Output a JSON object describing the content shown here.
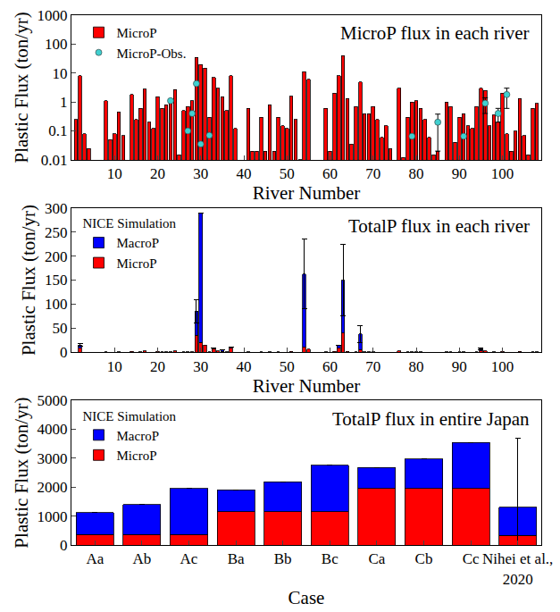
{
  "chart_data": [
    {
      "type": "bar",
      "title": "MicroP flux in each river",
      "x_label": "River Number",
      "y_label": "Plastic Flux (ton/yr)",
      "x": [
        1,
        2,
        3,
        4,
        5,
        6,
        7,
        8,
        9,
        10,
        11,
        12,
        13,
        14,
        15,
        16,
        17,
        18,
        19,
        20,
        21,
        22,
        23,
        24,
        25,
        26,
        27,
        28,
        29,
        30,
        31,
        32,
        33,
        34,
        35,
        36,
        37,
        38,
        39,
        40,
        41,
        42,
        43,
        44,
        45,
        46,
        47,
        48,
        49,
        50,
        51,
        52,
        53,
        54,
        55,
        56,
        57,
        58,
        59,
        60,
        61,
        62,
        63,
        64,
        65,
        66,
        67,
        68,
        69,
        70,
        71,
        72,
        73,
        74,
        75,
        76,
        77,
        78,
        79,
        80,
        81,
        82,
        83,
        84,
        85,
        86,
        87,
        88,
        89,
        90,
        91,
        92,
        93,
        94,
        95,
        96,
        97,
        98,
        99,
        100,
        101,
        102,
        103,
        104,
        105,
        106,
        107,
        108
      ],
      "series": [
        {
          "name": "MicroP",
          "color": "#ff0000",
          "values": [
            0.25,
            8,
            0.08,
            0.025,
            null,
            null,
            null,
            1.1,
            0.05,
            0.08,
            0.45,
            0.07,
            null,
            1.8,
            0.25,
            0.6,
            2.8,
            0.2,
            0.12,
            1.5,
            0.6,
            0.8,
            1.0,
            2.7,
            0.015,
            0.5,
            0.7,
            1.1,
            35,
            20,
            15,
            0.3,
            7,
            3,
            1.5,
            0.5,
            8,
            0.12,
            null,
            null,
            0.6,
            0.02,
            0.02,
            0.3,
            0.02,
            0.8,
            0.02,
            0.3,
            0.15,
            0.12,
            1.6,
            0.25,
            0.01,
            11,
            6,
            null,
            null,
            null,
            0.6,
            0.02,
            2,
            8,
            40,
            1.3,
            0.035,
            0.7,
            5,
            0.4,
            0.4,
            0.7,
            0.25,
            0.06,
            0.15,
            0.025,
            null,
            3,
            0.012,
            0.3,
            1,
            1.1,
            0.6,
            0.25,
            0.06,
            0.015,
            0.02,
            null,
            1,
            0.7,
            0.04,
            0.3,
            0.4,
            0.15,
            0.12,
            0.7,
            3,
            2.5,
            0.15,
            0.35,
            0.2,
            2,
            0.08,
            0.02,
            0.1,
            1.3,
            0.07,
            0.015,
            0.6,
            0.9
          ]
        },
        {
          "name": "MicroP-Obs.",
          "type": "scatter",
          "marker": "circle",
          "color": "#40d0d0",
          "x": [
            23,
            27,
            28,
            29,
            30,
            32,
            79,
            85,
            91,
            96,
            99,
            101
          ],
          "values": [
            1.1,
            0.1,
            0.4,
            4.3,
            0.035,
            0.07,
            0.065,
            0.2,
            0.065,
            0.9,
            0.4,
            1.8
          ],
          "error": [
            null,
            null,
            null,
            null,
            null,
            null,
            null,
            0.18,
            null,
            0.5,
            0.2,
            1.2
          ]
        }
      ],
      "xlim": [
        0,
        109
      ],
      "xticks": [
        10,
        20,
        30,
        40,
        50,
        60,
        70,
        80,
        90,
        100
      ],
      "ylim": [
        0.01,
        1000
      ],
      "yticks": [
        0.01,
        0.1,
        1,
        10,
        100,
        1000
      ],
      "log": "y",
      "legend": "top left"
    },
    {
      "type": "bar",
      "title": "TotalP flux in each river",
      "x_label": "River Number",
      "y_label": "Plastic Flux (ton/yr)",
      "legend_title": "NICE Simulation",
      "stacked": true,
      "legend": "top left",
      "x": [
        1,
        2,
        3,
        4,
        5,
        6,
        7,
        8,
        9,
        10,
        11,
        12,
        13,
        14,
        15,
        16,
        17,
        18,
        19,
        20,
        21,
        22,
        23,
        24,
        25,
        26,
        27,
        28,
        29,
        30,
        31,
        32,
        33,
        34,
        35,
        36,
        37,
        38,
        39,
        40,
        41,
        42,
        43,
        44,
        45,
        46,
        47,
        48,
        49,
        50,
        51,
        52,
        53,
        54,
        55,
        56,
        57,
        58,
        59,
        60,
        61,
        62,
        63,
        64,
        65,
        66,
        67,
        68,
        69,
        70,
        71,
        72,
        73,
        74,
        75,
        76,
        77,
        78,
        79,
        80,
        81,
        82,
        83,
        84,
        85,
        86,
        87,
        88,
        89,
        90,
        91,
        92,
        93,
        94,
        95,
        96,
        97,
        98,
        99,
        100,
        101,
        102,
        103,
        104,
        105,
        106,
        107,
        108
      ],
      "series": [
        {
          "name": "MicroP",
          "color": "#ff0000",
          "values": [
            0.25,
            8,
            0.08,
            0.025,
            null,
            null,
            null,
            1.1,
            0.05,
            0.08,
            0.45,
            0.07,
            null,
            1.8,
            0.25,
            0.6,
            2.8,
            0.2,
            0.12,
            1.5,
            0.6,
            0.8,
            1.0,
            2.7,
            0.015,
            0.5,
            0.7,
            1.1,
            35,
            20,
            15,
            0.3,
            7,
            3,
            1.5,
            0.5,
            8,
            0.12,
            null,
            null,
            0.6,
            0.02,
            0.02,
            0.3,
            0.02,
            0.8,
            0.02,
            0.3,
            0.15,
            0.12,
            1.6,
            0.25,
            0.01,
            11,
            6,
            null,
            null,
            null,
            0.6,
            0.02,
            2,
            8,
            40,
            1.3,
            0.035,
            0.7,
            5,
            0.4,
            0.4,
            0.7,
            0.25,
            0.06,
            0.15,
            0.025,
            null,
            3,
            0.012,
            0.3,
            1,
            1.1,
            0.6,
            0.25,
            0.06,
            0.015,
            0.02,
            null,
            1,
            0.7,
            0.04,
            0.3,
            0.4,
            0.15,
            0.12,
            0.7,
            3,
            2.5,
            0.15,
            0.35,
            0.2,
            2,
            0.08,
            0.02,
            0.1,
            1.3,
            0.07,
            0.015,
            0.6,
            0.9
          ]
        },
        {
          "name": "MacroP",
          "color": "#0000ff",
          "values": [
            null,
            7,
            null,
            null,
            null,
            null,
            null,
            null,
            null,
            null,
            null,
            null,
            null,
            null,
            null,
            null,
            null,
            null,
            null,
            null,
            null,
            null,
            null,
            null,
            null,
            null,
            null,
            null,
            50,
            270,
            null,
            null,
            2,
            null,
            3,
            null,
            2,
            null,
            null,
            null,
            null,
            null,
            null,
            null,
            null,
            null,
            null,
            null,
            null,
            null,
            null,
            null,
            null,
            152,
            null,
            null,
            null,
            null,
            null,
            null,
            null,
            7,
            110,
            null,
            null,
            null,
            33,
            null,
            null,
            null,
            null,
            null,
            null,
            null,
            null,
            null,
            null,
            null,
            null,
            null,
            null,
            null,
            null,
            null,
            null,
            null,
            null,
            null,
            null,
            null,
            null,
            null,
            null,
            null,
            4,
            null,
            null,
            null,
            null,
            null,
            null,
            null,
            null,
            null,
            null,
            null,
            null,
            null
          ],
          "error": [
            null,
            3,
            null,
            null,
            null,
            null,
            null,
            null,
            null,
            null,
            null,
            null,
            null,
            null,
            null,
            null,
            null,
            null,
            null,
            null,
            null,
            null,
            null,
            null,
            null,
            null,
            null,
            null,
            25,
            null,
            null,
            null,
            null,
            null,
            null,
            null,
            null,
            null,
            null,
            null,
            null,
            null,
            null,
            null,
            null,
            null,
            null,
            null,
            null,
            null,
            null,
            null,
            null,
            72,
            null,
            null,
            null,
            null,
            null,
            null,
            null,
            null,
            75,
            null,
            null,
            null,
            18,
            null,
            null,
            null,
            null,
            null,
            null,
            null,
            null,
            null,
            null,
            null,
            null,
            null,
            null,
            null,
            null,
            null,
            null,
            null,
            null,
            null,
            null,
            null,
            null,
            null,
            null,
            null,
            2,
            null,
            null,
            null,
            null,
            null,
            null,
            null,
            null,
            null,
            null,
            null,
            null,
            null
          ]
        }
      ],
      "xlim": [
        0,
        109
      ],
      "xticks": [
        10,
        20,
        30,
        40,
        50,
        60,
        70,
        80,
        90,
        100
      ],
      "ylim": [
        0,
        300
      ],
      "yticks": [
        0,
        50,
        100,
        150,
        200,
        250,
        300
      ]
    },
    {
      "type": "bar",
      "title": "TotalP flux in entire Japan",
      "x_label": "Case",
      "y_label": "Plastic Flux (ton/yr)",
      "legend_title": "NICE Simulation",
      "stacked": true,
      "legend": "top left",
      "categories": [
        "Aa",
        "Ab",
        "Ac",
        "Ba",
        "Bb",
        "Bc",
        "Ca",
        "Cb",
        "Cc",
        "Nihei et al., 2020"
      ],
      "series": [
        {
          "name": "MicroP",
          "color": "#ff0000",
          "values": [
            370,
            370,
            370,
            1150,
            1150,
            1150,
            1950,
            1950,
            1950,
            330
          ]
        },
        {
          "name": "MacroP",
          "color": "#0000ff",
          "values": [
            750,
            1030,
            1580,
            750,
            1030,
            1600,
            730,
            1030,
            1600,
            970
          ],
          "error": [
            null,
            null,
            null,
            null,
            null,
            null,
            null,
            null,
            null,
            2400
          ]
        }
      ],
      "ylim": [
        0,
        5000
      ],
      "yticks": [
        0,
        1000,
        2000,
        3000,
        4000,
        5000
      ]
    }
  ]
}
